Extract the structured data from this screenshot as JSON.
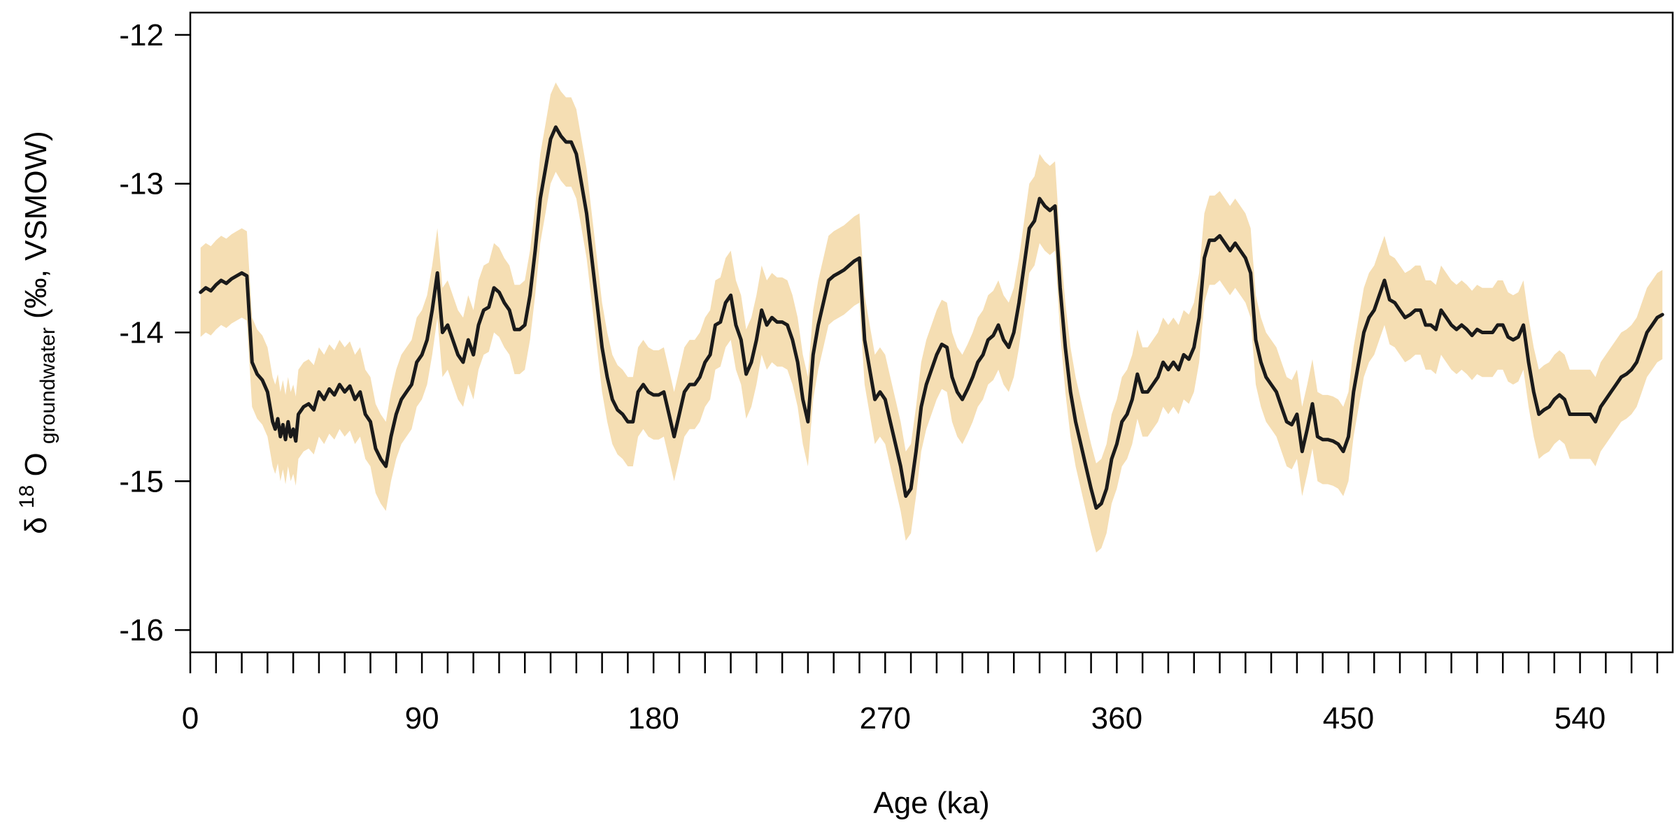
{
  "chart_data": {
    "type": "line",
    "title": "",
    "xlabel": "Age (ka)",
    "ylabel": {
      "delta": "δ",
      "sup": "18",
      "element": "O",
      "sub": "groundwater",
      "rest": " (‰, VSMOW)"
    },
    "xlim": [
      0,
      576
    ],
    "ylim": [
      -16.15,
      -11.85
    ],
    "x_ticks": [
      0,
      90,
      180,
      270,
      360,
      450,
      540
    ],
    "y_ticks": [
      -16,
      -15,
      -14,
      -13,
      -12
    ],
    "x_tick_labels": [
      "0",
      "90",
      "180",
      "270",
      "360",
      "450",
      "540"
    ],
    "y_tick_labels": [
      "-16",
      "-15",
      "-14",
      "-13",
      "-12"
    ],
    "minor_tick_interval": 10,
    "grid": false,
    "colors": {
      "line": "#1a1a1a",
      "band": "#f5deb3",
      "axis": "#000000"
    },
    "series": [
      {
        "band_halfwidth": 0.3,
        "points": [
          [
            4,
            -13.73
          ],
          [
            6,
            -13.7
          ],
          [
            8,
            -13.72
          ],
          [
            10,
            -13.68
          ],
          [
            12,
            -13.65
          ],
          [
            14,
            -13.67
          ],
          [
            16,
            -13.64
          ],
          [
            18,
            -13.62
          ],
          [
            20,
            -13.6
          ],
          [
            22,
            -13.62
          ],
          [
            24,
            -14.2
          ],
          [
            26,
            -14.28
          ],
          [
            28,
            -14.32
          ],
          [
            30,
            -14.4
          ],
          [
            32,
            -14.6
          ],
          [
            33,
            -14.65
          ],
          [
            34,
            -14.58
          ],
          [
            35,
            -14.7
          ],
          [
            36,
            -14.62
          ],
          [
            37,
            -14.72
          ],
          [
            38,
            -14.6
          ],
          [
            39,
            -14.7
          ],
          [
            40,
            -14.65
          ],
          [
            41,
            -14.73
          ],
          [
            42,
            -14.55
          ],
          [
            44,
            -14.5
          ],
          [
            46,
            -14.48
          ],
          [
            48,
            -14.52
          ],
          [
            50,
            -14.4
          ],
          [
            52,
            -14.45
          ],
          [
            54,
            -14.38
          ],
          [
            56,
            -14.42
          ],
          [
            58,
            -14.35
          ],
          [
            60,
            -14.4
          ],
          [
            62,
            -14.36
          ],
          [
            64,
            -14.45
          ],
          [
            66,
            -14.4
          ],
          [
            68,
            -14.55
          ],
          [
            70,
            -14.6
          ],
          [
            72,
            -14.78
          ],
          [
            74,
            -14.85
          ],
          [
            76,
            -14.9
          ],
          [
            78,
            -14.7
          ],
          [
            80,
            -14.55
          ],
          [
            82,
            -14.45
          ],
          [
            84,
            -14.4
          ],
          [
            86,
            -14.35
          ],
          [
            88,
            -14.2
          ],
          [
            90,
            -14.15
          ],
          [
            92,
            -14.05
          ],
          [
            94,
            -13.85
          ],
          [
            96,
            -13.6
          ],
          [
            98,
            -14.0
          ],
          [
            100,
            -13.95
          ],
          [
            102,
            -14.05
          ],
          [
            104,
            -14.15
          ],
          [
            106,
            -14.2
          ],
          [
            108,
            -14.05
          ],
          [
            110,
            -14.15
          ],
          [
            112,
            -13.95
          ],
          [
            114,
            -13.85
          ],
          [
            116,
            -13.83
          ],
          [
            118,
            -13.7
          ],
          [
            120,
            -13.73
          ],
          [
            122,
            -13.8
          ],
          [
            124,
            -13.85
          ],
          [
            126,
            -13.98
          ],
          [
            128,
            -13.98
          ],
          [
            130,
            -13.95
          ],
          [
            132,
            -13.75
          ],
          [
            134,
            -13.45
          ],
          [
            136,
            -13.1
          ],
          [
            138,
            -12.9
          ],
          [
            140,
            -12.7
          ],
          [
            142,
            -12.62
          ],
          [
            144,
            -12.68
          ],
          [
            146,
            -12.72
          ],
          [
            148,
            -12.72
          ],
          [
            150,
            -12.8
          ],
          [
            152,
            -13.0
          ],
          [
            154,
            -13.2
          ],
          [
            156,
            -13.5
          ],
          [
            158,
            -13.8
          ],
          [
            160,
            -14.1
          ],
          [
            162,
            -14.3
          ],
          [
            164,
            -14.45
          ],
          [
            166,
            -14.52
          ],
          [
            168,
            -14.55
          ],
          [
            170,
            -14.6
          ],
          [
            172,
            -14.6
          ],
          [
            174,
            -14.4
          ],
          [
            176,
            -14.35
          ],
          [
            178,
            -14.4
          ],
          [
            180,
            -14.42
          ],
          [
            182,
            -14.42
          ],
          [
            184,
            -14.4
          ],
          [
            186,
            -14.55
          ],
          [
            188,
            -14.7
          ],
          [
            190,
            -14.55
          ],
          [
            192,
            -14.4
          ],
          [
            194,
            -14.35
          ],
          [
            196,
            -14.35
          ],
          [
            198,
            -14.3
          ],
          [
            200,
            -14.2
          ],
          [
            202,
            -14.15
          ],
          [
            204,
            -13.95
          ],
          [
            206,
            -13.93
          ],
          [
            208,
            -13.8
          ],
          [
            210,
            -13.75
          ],
          [
            212,
            -13.95
          ],
          [
            214,
            -14.05
          ],
          [
            216,
            -14.28
          ],
          [
            218,
            -14.2
          ],
          [
            220,
            -14.05
          ],
          [
            222,
            -13.85
          ],
          [
            224,
            -13.95
          ],
          [
            226,
            -13.9
          ],
          [
            228,
            -13.93
          ],
          [
            230,
            -13.93
          ],
          [
            232,
            -13.95
          ],
          [
            234,
            -14.05
          ],
          [
            236,
            -14.2
          ],
          [
            238,
            -14.45
          ],
          [
            240,
            -14.6
          ],
          [
            242,
            -14.15
          ],
          [
            244,
            -13.95
          ],
          [
            246,
            -13.8
          ],
          [
            248,
            -13.65
          ],
          [
            250,
            -13.62
          ],
          [
            252,
            -13.6
          ],
          [
            254,
            -13.58
          ],
          [
            256,
            -13.55
          ],
          [
            258,
            -13.52
          ],
          [
            260,
            -13.5
          ],
          [
            262,
            -14.05
          ],
          [
            264,
            -14.25
          ],
          [
            266,
            -14.45
          ],
          [
            268,
            -14.4
          ],
          [
            270,
            -14.45
          ],
          [
            272,
            -14.6
          ],
          [
            274,
            -14.75
          ],
          [
            276,
            -14.9
          ],
          [
            278,
            -15.1
          ],
          [
            280,
            -15.05
          ],
          [
            282,
            -14.8
          ],
          [
            284,
            -14.5
          ],
          [
            286,
            -14.35
          ],
          [
            288,
            -14.25
          ],
          [
            290,
            -14.15
          ],
          [
            292,
            -14.08
          ],
          [
            294,
            -14.1
          ],
          [
            296,
            -14.3
          ],
          [
            298,
            -14.4
          ],
          [
            300,
            -14.45
          ],
          [
            302,
            -14.38
          ],
          [
            304,
            -14.3
          ],
          [
            306,
            -14.2
          ],
          [
            308,
            -14.15
          ],
          [
            310,
            -14.05
          ],
          [
            312,
            -14.02
          ],
          [
            314,
            -13.95
          ],
          [
            316,
            -14.05
          ],
          [
            318,
            -14.1
          ],
          [
            320,
            -14.0
          ],
          [
            322,
            -13.8
          ],
          [
            324,
            -13.55
          ],
          [
            326,
            -13.3
          ],
          [
            328,
            -13.25
          ],
          [
            330,
            -13.1
          ],
          [
            332,
            -13.15
          ],
          [
            334,
            -13.18
          ],
          [
            336,
            -13.15
          ],
          [
            338,
            -13.7
          ],
          [
            340,
            -14.1
          ],
          [
            342,
            -14.4
          ],
          [
            344,
            -14.6
          ],
          [
            346,
            -14.75
          ],
          [
            348,
            -14.9
          ],
          [
            350,
            -15.05
          ],
          [
            352,
            -15.18
          ],
          [
            354,
            -15.15
          ],
          [
            356,
            -15.05
          ],
          [
            358,
            -14.85
          ],
          [
            360,
            -14.75
          ],
          [
            362,
            -14.6
          ],
          [
            364,
            -14.55
          ],
          [
            366,
            -14.45
          ],
          [
            368,
            -14.28
          ],
          [
            370,
            -14.4
          ],
          [
            372,
            -14.4
          ],
          [
            374,
            -14.35
          ],
          [
            376,
            -14.3
          ],
          [
            378,
            -14.2
          ],
          [
            380,
            -14.25
          ],
          [
            382,
            -14.2
          ],
          [
            384,
            -14.25
          ],
          [
            386,
            -14.15
          ],
          [
            388,
            -14.18
          ],
          [
            390,
            -14.1
          ],
          [
            392,
            -13.9
          ],
          [
            394,
            -13.5
          ],
          [
            396,
            -13.38
          ],
          [
            398,
            -13.38
          ],
          [
            400,
            -13.35
          ],
          [
            402,
            -13.4
          ],
          [
            404,
            -13.45
          ],
          [
            406,
            -13.4
          ],
          [
            408,
            -13.45
          ],
          [
            410,
            -13.5
          ],
          [
            412,
            -13.6
          ],
          [
            414,
            -14.05
          ],
          [
            416,
            -14.2
          ],
          [
            418,
            -14.3
          ],
          [
            420,
            -14.35
          ],
          [
            422,
            -14.4
          ],
          [
            424,
            -14.5
          ],
          [
            426,
            -14.6
          ],
          [
            428,
            -14.62
          ],
          [
            430,
            -14.55
          ],
          [
            432,
            -14.8
          ],
          [
            434,
            -14.65
          ],
          [
            436,
            -14.48
          ],
          [
            438,
            -14.7
          ],
          [
            440,
            -14.72
          ],
          [
            442,
            -14.72
          ],
          [
            444,
            -14.73
          ],
          [
            446,
            -14.75
          ],
          [
            448,
            -14.8
          ],
          [
            450,
            -14.7
          ],
          [
            452,
            -14.4
          ],
          [
            454,
            -14.2
          ],
          [
            456,
            -14.0
          ],
          [
            458,
            -13.9
          ],
          [
            460,
            -13.85
          ],
          [
            462,
            -13.75
          ],
          [
            464,
            -13.65
          ],
          [
            466,
            -13.78
          ],
          [
            468,
            -13.8
          ],
          [
            470,
            -13.85
          ],
          [
            472,
            -13.9
          ],
          [
            474,
            -13.88
          ],
          [
            476,
            -13.85
          ],
          [
            478,
            -13.85
          ],
          [
            480,
            -13.95
          ],
          [
            482,
            -13.95
          ],
          [
            484,
            -13.98
          ],
          [
            486,
            -13.85
          ],
          [
            488,
            -13.9
          ],
          [
            490,
            -13.95
          ],
          [
            492,
            -13.98
          ],
          [
            494,
            -13.95
          ],
          [
            496,
            -13.98
          ],
          [
            498,
            -14.02
          ],
          [
            500,
            -13.98
          ],
          [
            502,
            -14.0
          ],
          [
            504,
            -14.0
          ],
          [
            506,
            -14.0
          ],
          [
            508,
            -13.95
          ],
          [
            510,
            -13.95
          ],
          [
            512,
            -14.03
          ],
          [
            514,
            -14.05
          ],
          [
            516,
            -14.03
          ],
          [
            518,
            -13.95
          ],
          [
            520,
            -14.2
          ],
          [
            522,
            -14.4
          ],
          [
            524,
            -14.55
          ],
          [
            526,
            -14.52
          ],
          [
            528,
            -14.5
          ],
          [
            530,
            -14.45
          ],
          [
            532,
            -14.42
          ],
          [
            534,
            -14.45
          ],
          [
            536,
            -14.55
          ],
          [
            538,
            -14.55
          ],
          [
            540,
            -14.55
          ],
          [
            542,
            -14.55
          ],
          [
            544,
            -14.55
          ],
          [
            546,
            -14.6
          ],
          [
            548,
            -14.5
          ],
          [
            550,
            -14.45
          ],
          [
            552,
            -14.4
          ],
          [
            554,
            -14.35
          ],
          [
            556,
            -14.3
          ],
          [
            558,
            -14.28
          ],
          [
            560,
            -14.25
          ],
          [
            562,
            -14.2
          ],
          [
            564,
            -14.1
          ],
          [
            566,
            -14.0
          ],
          [
            568,
            -13.95
          ],
          [
            570,
            -13.9
          ],
          [
            572,
            -13.88
          ]
        ]
      }
    ]
  }
}
